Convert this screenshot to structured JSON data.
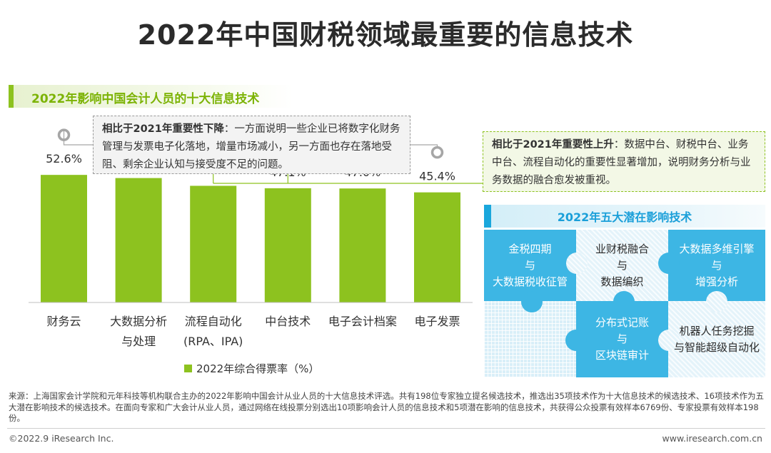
{
  "page": {
    "title": "2022年中国财税领域最重要的信息技术"
  },
  "section": {
    "title": "2022年影响中国会计人员的十大信息技术"
  },
  "notes": {
    "left_bold": "相比于2021年重要性下降",
    "left_text": "：一方面说明一些企业已将数字化财务管理与发票电子化落地，增量市场减小，另一方面也存在落地受阻、剩余企业认知与接受度不足的问题。",
    "right_bold": "相比于2021年重要性上升",
    "right_text": "：数据中台、财税中台、业务中台、流程自动化的重要性显著增加，说明财务分析与业务数据的融合愈发被重视。"
  },
  "chart_data": {
    "type": "bar",
    "categories": [
      "财务云",
      "大数据分析\n与处理",
      "流程自动化\n(RPA、IPA)",
      "中台技术",
      "电子会计档案",
      "电子发票"
    ],
    "series": [
      {
        "name": "2022年综合得票率（%）",
        "values": [
          52.6,
          51.3,
          48.1,
          47.1,
          47.0,
          45.4
        ]
      }
    ],
    "data_labels": [
      "52.6%",
      "51.3%",
      "48.1%",
      "47.1%",
      "47.0%",
      "45.4%"
    ],
    "ylim": [
      0,
      60
    ],
    "color": "#8dc21f",
    "trend_markers": [
      "down",
      "none",
      "up",
      "up",
      "none",
      "down"
    ],
    "marker_colors": {
      "up": "#8dc21f",
      "down": "#a6a6a6"
    },
    "legend_position": "bottom",
    "grid": false
  },
  "potential": {
    "title": "2022年五大潜在影响技术",
    "items": [
      "金税四期\n与\n大数据税收征管",
      "业财税融合\n与\n数据编织",
      "大数据多维引擎\n与\n增强分析",
      "分布式记账\n与\n区块链审计",
      "机器人任务挖掘\n与智能超级自动化"
    ],
    "colors": {
      "solid": "#3db6e4",
      "light": "#e4f3fa"
    }
  },
  "footer": {
    "source": "来源：上海国家会计学院和元年科技等机构联合主办的2022年影响中国会计从业人员的十大信息技术评选。共有198位专家独立提名候选技术，推选出35项技术作为十大信息技术的候选技术、16项技术作为五大潜在影响技术的候选技术。在面向专家和广大会计从业人员，通过网络在线投票分别选出10项影响会计人员的信息技术和5项潜在影响的信息技术，共获得公众投票有效样本6769份、专家投票有效样本198份。",
    "copyright": "©2022.9 iResearch Inc.",
    "website": "www.iresearch.com.cn"
  }
}
